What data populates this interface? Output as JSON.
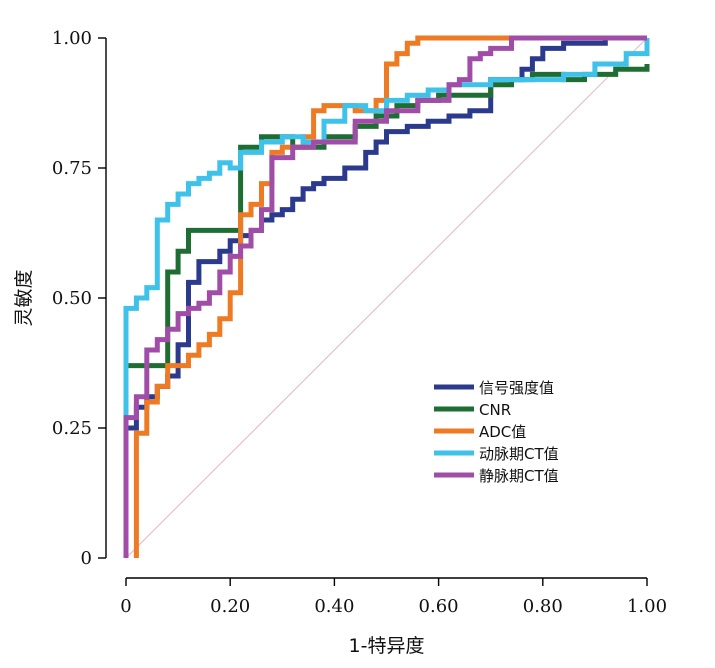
{
  "chart_data": {
    "type": "line",
    "title": "",
    "xlabel": "1-特异度",
    "ylabel": "灵敏度",
    "xlim": [
      0,
      1
    ],
    "ylim": [
      0,
      1
    ],
    "x_ticks": [
      {
        "value": 0,
        "label": "0"
      },
      {
        "value": 0.2,
        "label": "0.20"
      },
      {
        "value": 0.4,
        "label": "0.40"
      },
      {
        "value": 0.6,
        "label": "0.60"
      },
      {
        "value": 0.8,
        "label": "0.80"
      },
      {
        "value": 1.0,
        "label": "1.00"
      }
    ],
    "y_ticks": [
      {
        "value": 0,
        "label": "0"
      },
      {
        "value": 0.25,
        "label": "0.25"
      },
      {
        "value": 0.5,
        "label": "0.50"
      },
      {
        "value": 0.75,
        "label": "0.75"
      },
      {
        "value": 1.0,
        "label": "1.00"
      }
    ],
    "grid": false,
    "legend_position": "bottom-right",
    "reference_line": {
      "x": [
        0,
        1
      ],
      "y": [
        0,
        1
      ],
      "color": "#e3b8bf"
    },
    "series": [
      {
        "name": "信号强度值",
        "color": "#2b3a8c",
        "x": [
          0,
          0,
          0.02,
          0.02,
          0.04,
          0.04,
          0.06,
          0.06,
          0.08,
          0.08,
          0.1,
          0.1,
          0.12,
          0.12,
          0.14,
          0.14,
          0.18,
          0.18,
          0.2,
          0.2,
          0.22,
          0.22,
          0.24,
          0.24,
          0.26,
          0.26,
          0.28,
          0.28,
          0.3,
          0.3,
          0.32,
          0.32,
          0.34,
          0.34,
          0.36,
          0.36,
          0.38,
          0.38,
          0.42,
          0.42,
          0.46,
          0.46,
          0.48,
          0.48,
          0.5,
          0.5,
          0.54,
          0.54,
          0.58,
          0.58,
          0.62,
          0.62,
          0.66,
          0.66,
          0.7,
          0.7,
          0.76,
          0.76,
          0.78,
          0.78,
          0.8,
          0.8,
          0.84,
          0.84,
          0.92,
          0.92,
          1.0
        ],
        "y": [
          0,
          0.25,
          0.25,
          0.29,
          0.29,
          0.31,
          0.31,
          0.33,
          0.33,
          0.35,
          0.35,
          0.41,
          0.41,
          0.53,
          0.53,
          0.57,
          0.57,
          0.59,
          0.59,
          0.61,
          0.61,
          0.62,
          0.62,
          0.63,
          0.63,
          0.65,
          0.65,
          0.66,
          0.66,
          0.67,
          0.67,
          0.69,
          0.69,
          0.71,
          0.71,
          0.72,
          0.72,
          0.73,
          0.73,
          0.75,
          0.75,
          0.78,
          0.78,
          0.8,
          0.8,
          0.82,
          0.82,
          0.83,
          0.83,
          0.84,
          0.84,
          0.85,
          0.85,
          0.86,
          0.86,
          0.92,
          0.92,
          0.94,
          0.94,
          0.96,
          0.96,
          0.98,
          0.98,
          0.99,
          0.99,
          1.0,
          1.0
        ]
      },
      {
        "name": "CNR",
        "color": "#1e6e33",
        "x": [
          0,
          0,
          0.08,
          0.08,
          0.1,
          0.1,
          0.12,
          0.12,
          0.22,
          0.22,
          0.26,
          0.26,
          0.32,
          0.32,
          0.38,
          0.38,
          0.44,
          0.44,
          0.48,
          0.48,
          0.52,
          0.52,
          0.56,
          0.56,
          0.6,
          0.6,
          0.7,
          0.7,
          0.74,
          0.74,
          0.78,
          0.78,
          0.84,
          0.84,
          0.88,
          0.88,
          0.94,
          0.94,
          1.0,
          1.0
        ],
        "y": [
          0,
          0.37,
          0.37,
          0.55,
          0.55,
          0.59,
          0.59,
          0.63,
          0.63,
          0.79,
          0.79,
          0.81,
          0.81,
          0.79,
          0.79,
          0.81,
          0.81,
          0.83,
          0.83,
          0.85,
          0.85,
          0.87,
          0.87,
          0.88,
          0.88,
          0.89,
          0.89,
          0.91,
          0.91,
          0.92,
          0.92,
          0.93,
          0.93,
          0.92,
          0.92,
          0.93,
          0.93,
          0.94,
          0.94,
          0.95
        ]
      },
      {
        "name": "ADC值",
        "color": "#ee7a23",
        "x": [
          0.02,
          0.02,
          0.04,
          0.04,
          0.06,
          0.06,
          0.08,
          0.08,
          0.12,
          0.12,
          0.14,
          0.14,
          0.16,
          0.16,
          0.18,
          0.18,
          0.2,
          0.2,
          0.22,
          0.22,
          0.24,
          0.24,
          0.26,
          0.26,
          0.28,
          0.28,
          0.3,
          0.3,
          0.34,
          0.34,
          0.36,
          0.36,
          0.38,
          0.38,
          0.44,
          0.44,
          0.48,
          0.48,
          0.5,
          0.5,
          0.52,
          0.52,
          0.54,
          0.54,
          0.56,
          0.56,
          1.0
        ],
        "y": [
          0,
          0.24,
          0.24,
          0.3,
          0.3,
          0.33,
          0.33,
          0.37,
          0.37,
          0.39,
          0.39,
          0.41,
          0.41,
          0.43,
          0.43,
          0.46,
          0.46,
          0.51,
          0.51,
          0.66,
          0.66,
          0.68,
          0.68,
          0.72,
          0.72,
          0.78,
          0.78,
          0.79,
          0.79,
          0.81,
          0.81,
          0.86,
          0.86,
          0.87,
          0.87,
          0.86,
          0.86,
          0.88,
          0.88,
          0.95,
          0.95,
          0.97,
          0.97,
          0.99,
          0.99,
          1.0,
          1.0
        ]
      },
      {
        "name": "动脉期CT值",
        "color": "#3ec2ea",
        "x": [
          0,
          0,
          0.02,
          0.02,
          0.04,
          0.04,
          0.06,
          0.06,
          0.08,
          0.08,
          0.1,
          0.1,
          0.12,
          0.12,
          0.14,
          0.14,
          0.16,
          0.16,
          0.18,
          0.18,
          0.2,
          0.2,
          0.22,
          0.22,
          0.26,
          0.26,
          0.3,
          0.3,
          0.34,
          0.34,
          0.38,
          0.38,
          0.42,
          0.42,
          0.46,
          0.46,
          0.5,
          0.5,
          0.54,
          0.54,
          0.58,
          0.58,
          0.62,
          0.62,
          0.7,
          0.7,
          0.84,
          0.84,
          0.9,
          0.9,
          0.96,
          0.96,
          1.0,
          1.0
        ],
        "y": [
          0,
          0.48,
          0.48,
          0.5,
          0.5,
          0.52,
          0.52,
          0.65,
          0.65,
          0.68,
          0.68,
          0.7,
          0.7,
          0.72,
          0.72,
          0.73,
          0.73,
          0.74,
          0.74,
          0.76,
          0.76,
          0.75,
          0.75,
          0.78,
          0.78,
          0.8,
          0.8,
          0.81,
          0.81,
          0.8,
          0.8,
          0.84,
          0.84,
          0.87,
          0.87,
          0.86,
          0.86,
          0.88,
          0.88,
          0.89,
          0.89,
          0.9,
          0.9,
          0.91,
          0.91,
          0.92,
          0.92,
          0.93,
          0.93,
          0.95,
          0.95,
          0.97,
          0.97,
          1.0
        ]
      },
      {
        "name": "静脉期CT值",
        "color": "#a04da8",
        "x": [
          0,
          0,
          0.02,
          0.02,
          0.04,
          0.04,
          0.06,
          0.06,
          0.08,
          0.08,
          0.1,
          0.1,
          0.12,
          0.12,
          0.14,
          0.14,
          0.16,
          0.16,
          0.18,
          0.18,
          0.2,
          0.2,
          0.22,
          0.22,
          0.24,
          0.24,
          0.26,
          0.26,
          0.28,
          0.28,
          0.32,
          0.32,
          0.36,
          0.36,
          0.44,
          0.44,
          0.5,
          0.5,
          0.56,
          0.56,
          0.62,
          0.62,
          0.64,
          0.64,
          0.66,
          0.66,
          0.68,
          0.68,
          0.7,
          0.7,
          0.74,
          0.74,
          1.0
        ],
        "y": [
          0,
          0.27,
          0.27,
          0.31,
          0.31,
          0.4,
          0.4,
          0.42,
          0.42,
          0.44,
          0.44,
          0.47,
          0.47,
          0.48,
          0.48,
          0.49,
          0.49,
          0.51,
          0.51,
          0.55,
          0.55,
          0.58,
          0.58,
          0.6,
          0.6,
          0.63,
          0.63,
          0.67,
          0.67,
          0.77,
          0.77,
          0.79,
          0.79,
          0.8,
          0.8,
          0.84,
          0.84,
          0.86,
          0.86,
          0.88,
          0.88,
          0.91,
          0.91,
          0.92,
          0.92,
          0.96,
          0.96,
          0.97,
          0.97,
          0.98,
          0.98,
          1.0,
          1.0
        ]
      }
    ]
  }
}
